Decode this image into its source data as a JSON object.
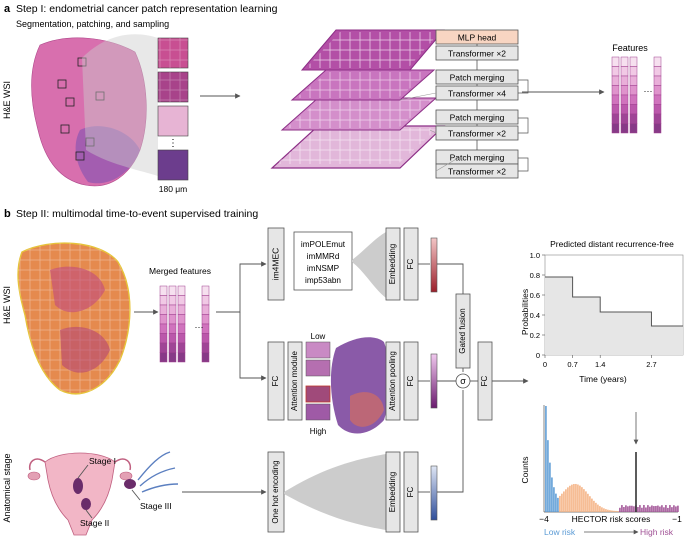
{
  "section_a": {
    "letter": "a",
    "title": "Step I: endometrial cancer patch representation learning",
    "subtitle": "Segmentation, patching, and sampling",
    "wsi_label": "H&E WSI",
    "scale_label": "180 μm",
    "ellipsis": "⋮",
    "mlp_head": "MLP head",
    "blocks": [
      "Transformer ×2",
      "Patch merging",
      "Transformer ×4",
      "Patch merging",
      "Transformer ×2",
      "Patch merging",
      "Transformer ×2"
    ],
    "features_label": "Features",
    "dots": "···"
  },
  "section_b": {
    "letter": "b",
    "title": "Step II: multimodal time-to-event supervised training",
    "wsi_label": "H&E WSI",
    "merged_features": "Merged features",
    "dots": "···",
    "im4mec": "im4MEC",
    "subtypes": [
      "imPOLEmut",
      "imMMRd",
      "imNSMP",
      "imp53abn"
    ],
    "embedding": "Embedding",
    "fc": "FC",
    "attention_module": "Attention module",
    "attention_pooling": "Attention pooling",
    "low": "Low",
    "high": "High",
    "gated_fusion": "Gated fusion",
    "sigma": "σ",
    "one_hot": "One hot encoding",
    "anatomical_stage": "Anatomical stage",
    "stages": [
      "Stage I",
      "Stage II",
      "Stage III"
    ]
  },
  "km_chart": {
    "title": "Predicted distant recurrence-free",
    "xlabel": "Time (years)",
    "ylabel": "Probabilities",
    "y_ticks": [
      "0",
      "0.2",
      "0.4",
      "0.6",
      "0.8",
      "1.0"
    ],
    "x_ticks": [
      "0",
      "0.7",
      "1.4",
      "2.7"
    ],
    "steps": [
      [
        0,
        0.78
      ],
      [
        0.7,
        0.58
      ],
      [
        1.4,
        0.43
      ],
      [
        2.7,
        0.29
      ],
      [
        3.5,
        0.29
      ]
    ]
  },
  "hist_chart": {
    "ylabel": "Counts",
    "xlabel": "HECTOR risk scores",
    "x_min": "−4",
    "x_max": "−1",
    "low_risk": "Low risk",
    "high_risk": "High risk",
    "colors": {
      "low": "#5b9bd5",
      "mid": "#f4b183",
      "high": "#a05195"
    }
  }
}
